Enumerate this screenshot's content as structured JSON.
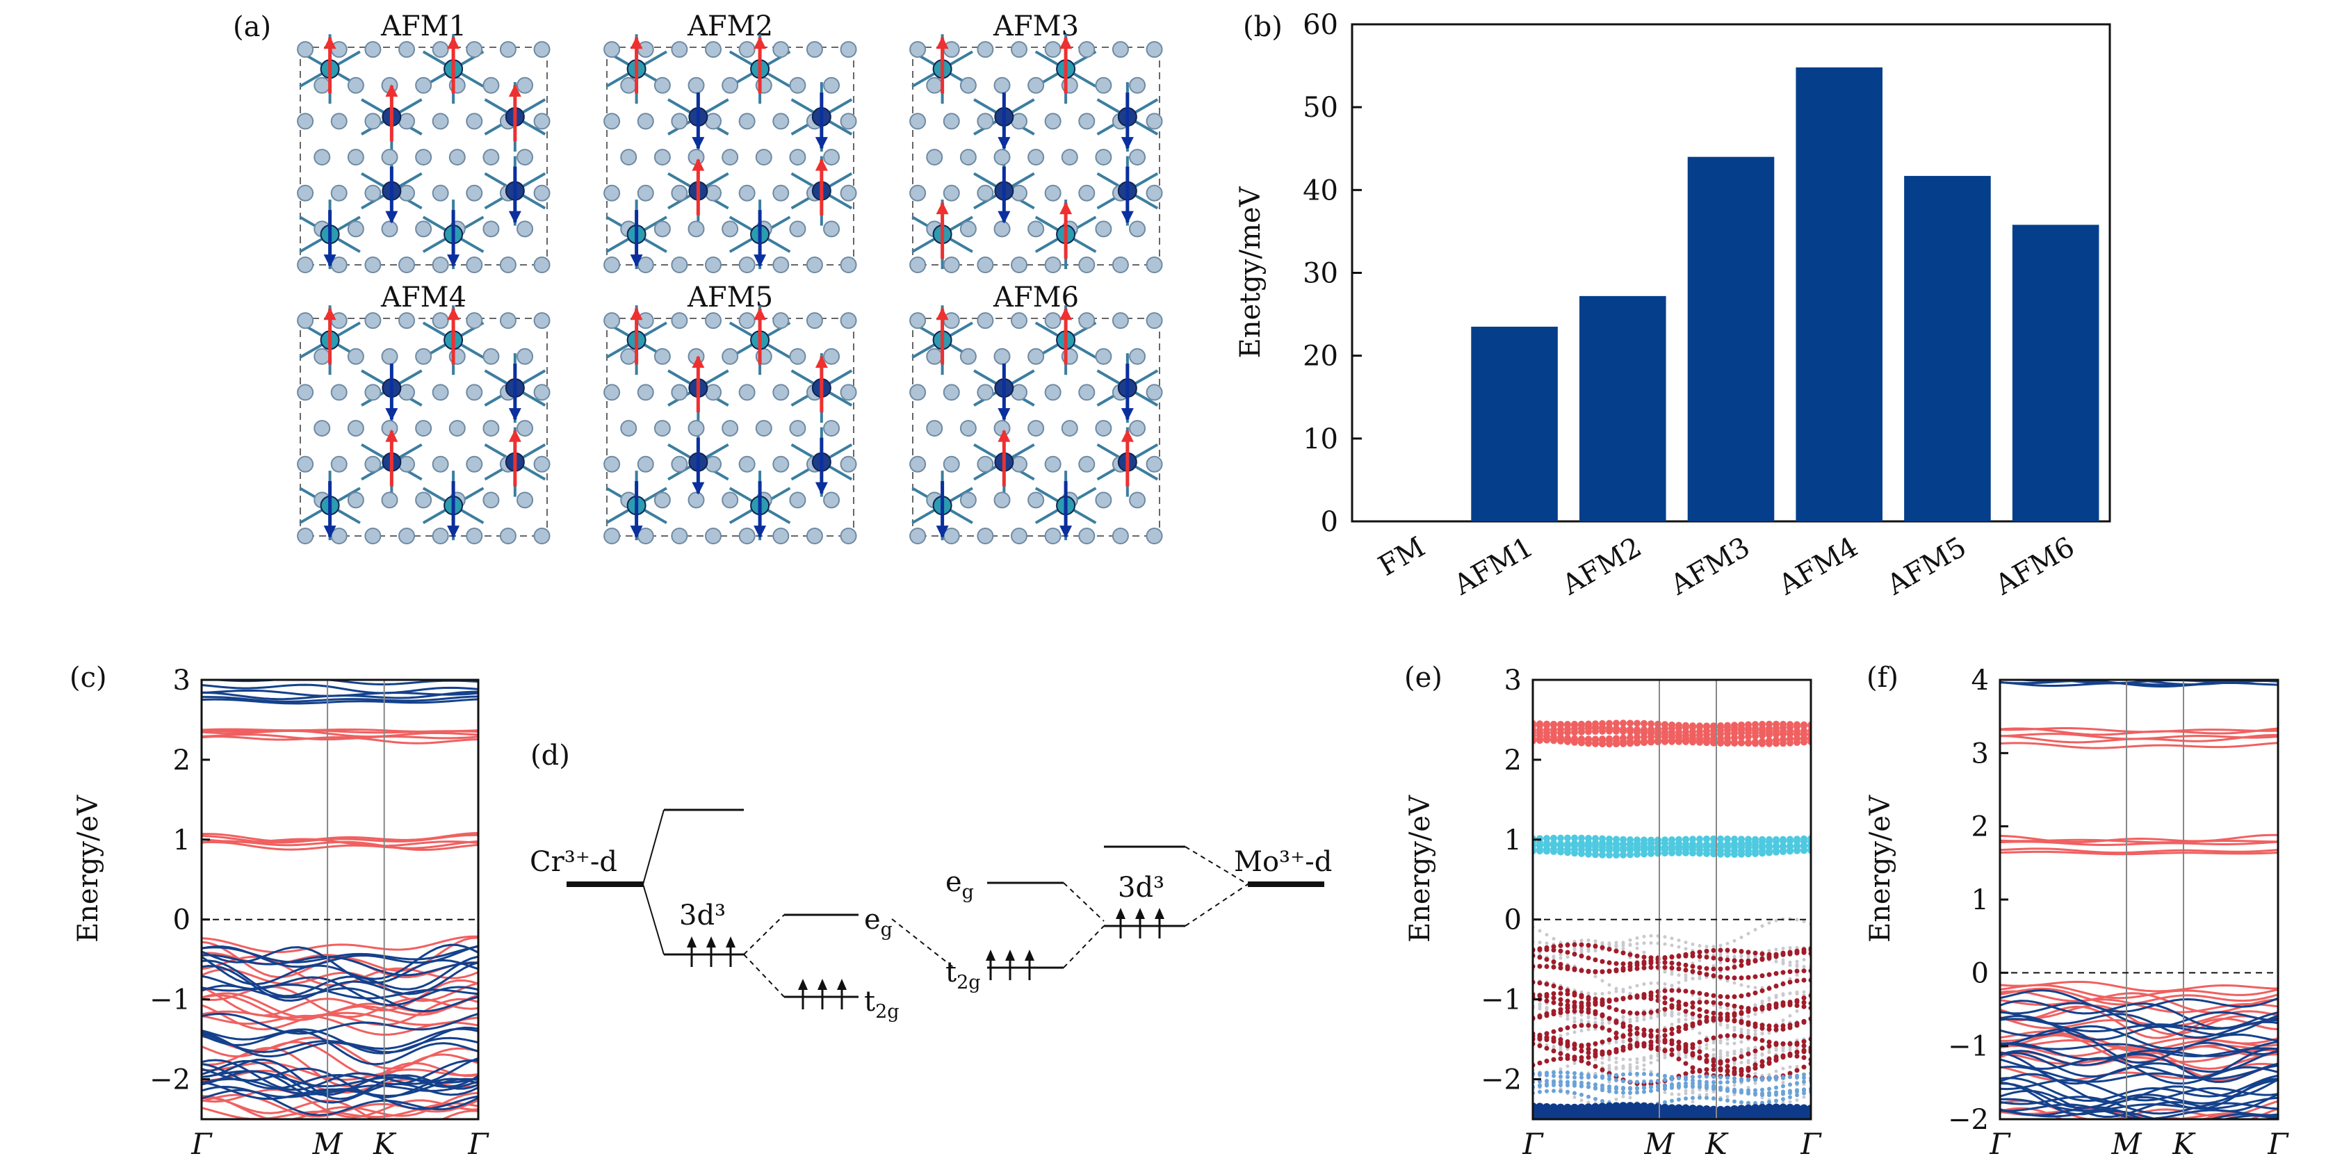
{
  "panels": {
    "a": {
      "label": "(a)",
      "structures": [
        {
          "title": "AFM1",
          "spins": [
            "up",
            "up",
            "up",
            "up",
            "down",
            "down",
            "down",
            "down"
          ]
        },
        {
          "title": "AFM2",
          "spins": [
            "up",
            "down",
            "up",
            "down",
            "down",
            "up",
            "down",
            "up"
          ]
        },
        {
          "title": "AFM3",
          "spins": [
            "up",
            "down",
            "up",
            "down",
            "up",
            "down",
            "up",
            "down"
          ]
        },
        {
          "title": "AFM4",
          "spins": [
            "up",
            "down",
            "up",
            "down",
            "down",
            "up",
            "down",
            "up"
          ]
        },
        {
          "title": "AFM5",
          "spins": [
            "up",
            "up",
            "up",
            "up",
            "down",
            "down",
            "down",
            "down"
          ]
        },
        {
          "title": "AFM6",
          "spins": [
            "up",
            "down",
            "up",
            "down",
            "down",
            "up",
            "down",
            "up"
          ]
        }
      ]
    },
    "b": {
      "label": "(b)"
    },
    "c": {
      "label": "(c)",
      "ylabel": "Energy/eV",
      "kpoints": [
        "Γ",
        "M",
        "K",
        "Γ"
      ],
      "yticks": [
        "3",
        "2",
        "1",
        "0",
        "−1",
        "−2"
      ]
    },
    "d": {
      "label": "(d)",
      "left_atom": "Cr³⁺-d",
      "right_atom": "Mo³⁺-d",
      "left_config": "3d³",
      "right_config": "3d³",
      "eg_label_left": "e",
      "eg_sub_left": "g",
      "t2g_label_left": "t",
      "t2g_sub_left": "2g",
      "eg_label_right": "e",
      "eg_sub_right": "g",
      "t2g_label_right": "t",
      "t2g_sub_right": "2g"
    },
    "e": {
      "label": "(e)",
      "ylabel": "Energy/eV",
      "kpoints": [
        "Γ",
        "M",
        "K",
        "Γ"
      ],
      "yticks": [
        "3",
        "2",
        "1",
        "0",
        "−1",
        "−2"
      ]
    },
    "f": {
      "label": "(f)",
      "ylabel": "Energy/eV",
      "kpoints": [
        "Γ",
        "M",
        "K",
        "Γ"
      ],
      "yticks": [
        "4",
        "3",
        "2",
        "1",
        "0",
        "−1",
        "−2"
      ]
    }
  },
  "colors": {
    "bar": "#053e8b",
    "spin_up": "#ee3030",
    "spin_down": "#0a2f9e",
    "band_red": "#f06060",
    "band_blue": "#14418c",
    "band_cyan": "#4ec9e0",
    "band_darkred": "#a01c2a"
  },
  "chart_data": {
    "type": "bar",
    "categories": [
      "FM",
      "AFM1",
      "AFM2",
      "AFM3",
      "AFM4",
      "AFM5",
      "AFM6"
    ],
    "values": [
      0,
      23.5,
      27.2,
      44.0,
      54.8,
      41.7,
      35.8
    ],
    "ylabel": "Enetgy/meV",
    "xlabel": "",
    "ylim": [
      0,
      60
    ],
    "yticks": [
      0,
      10,
      20,
      30,
      40,
      50,
      60
    ],
    "grid": false,
    "legend": "none"
  }
}
